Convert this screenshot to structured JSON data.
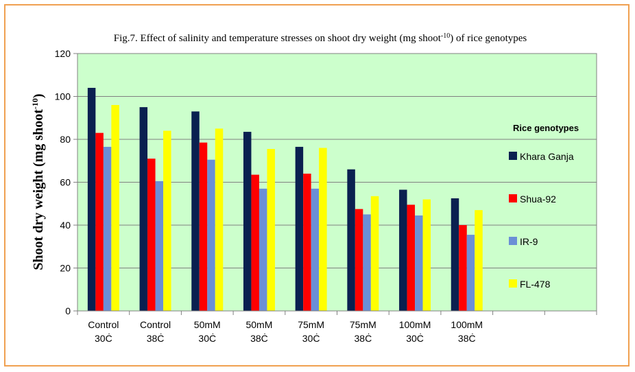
{
  "chart_data": {
    "type": "bar",
    "title": "Fig.7. Effect of salinity and temperature stresses on shoot dry weight (mg shoot",
    "title_sup": "-10",
    "title_tail": ") of rice genotypes",
    "ylabel": "Shoot dry weight (mg shoot",
    "ylabel_sup": "-10",
    "ylabel_tail": ")",
    "ylim": [
      0,
      120
    ],
    "yticks": [
      "0",
      "20",
      "40",
      "60",
      "80",
      "100",
      "120"
    ],
    "grid": true,
    "plot_bg": "#ccffcc",
    "legend_title": "Rice genotypes",
    "legend_position": "right",
    "categories": [
      [
        "Control",
        "30Ċ"
      ],
      [
        "Control",
        "38Ċ"
      ],
      [
        "50mM",
        "30Ċ"
      ],
      [
        "50mM",
        "38Ċ"
      ],
      [
        "75mM",
        "30Ċ"
      ],
      [
        "75mM",
        "38Ċ"
      ],
      [
        "100mM",
        "30Ċ"
      ],
      [
        "100mM",
        "38Ċ"
      ],
      [
        "",
        ""
      ],
      [
        "",
        ""
      ]
    ],
    "series": [
      {
        "name": "Khara Ganja",
        "color": "#0a2050",
        "values": [
          104,
          95,
          93,
          83.5,
          76.5,
          66,
          56.5,
          52.5,
          null,
          null
        ]
      },
      {
        "name": "Shua-92",
        "color": "#ff0000",
        "values": [
          83,
          71,
          78.5,
          63.5,
          64,
          47.5,
          49.5,
          40,
          null,
          null
        ]
      },
      {
        "name": "IR-9",
        "color": "#6b8fd6",
        "values": [
          76.5,
          60.5,
          70.5,
          57,
          57,
          45,
          44.5,
          35.5,
          null,
          null
        ]
      },
      {
        "name": "FL-478",
        "color": "#ffff00",
        "values": [
          96,
          84,
          85,
          75.5,
          76,
          53.5,
          52,
          47,
          null,
          null
        ]
      }
    ]
  }
}
